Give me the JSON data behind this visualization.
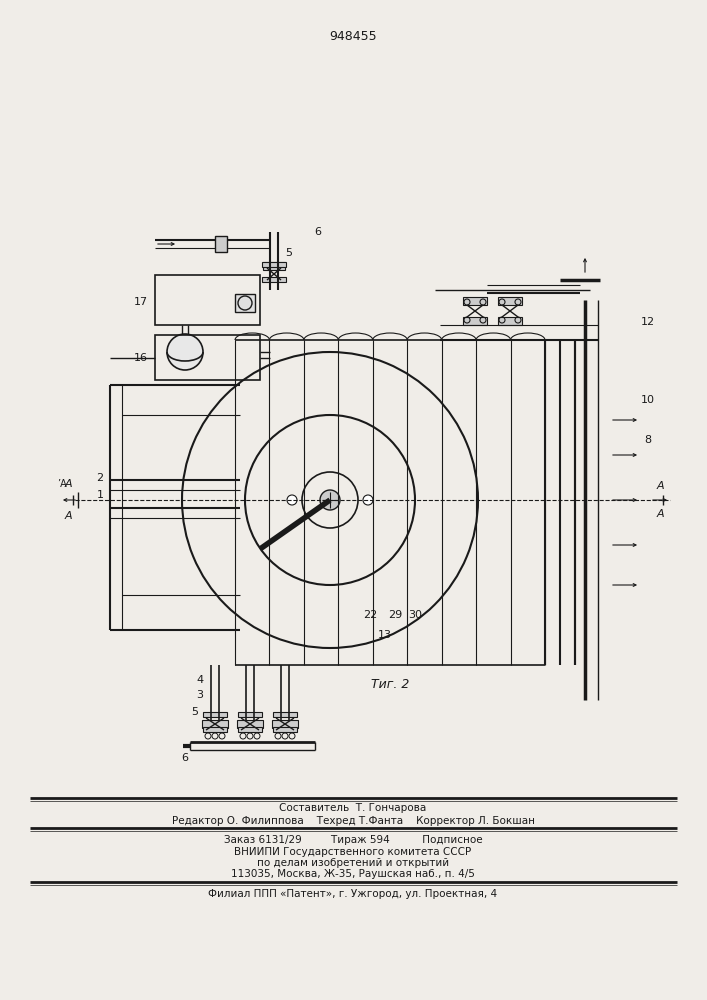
{
  "patent_number": "948455",
  "fig_label": "Τиг. 2",
  "bg": "#f0ede8",
  "lc": "#1a1a1a",
  "footer_lines": [
    "Составитель  Т. Гончарова",
    "Редактор О. Филиппова    Техред Т.Фанта    Корректор Л. Бокшан",
    "Заказ 6131/29         Тираж 594          Подписное",
    "ВНИИПИ Государственного комитета СССР",
    "по делам изобретений и открытий",
    "113035, Москва, Ж-35, Раушская наб., п. 4/5",
    "Филиал ППП «Патент», г. Ужгород, ул. Проектная, 4"
  ]
}
